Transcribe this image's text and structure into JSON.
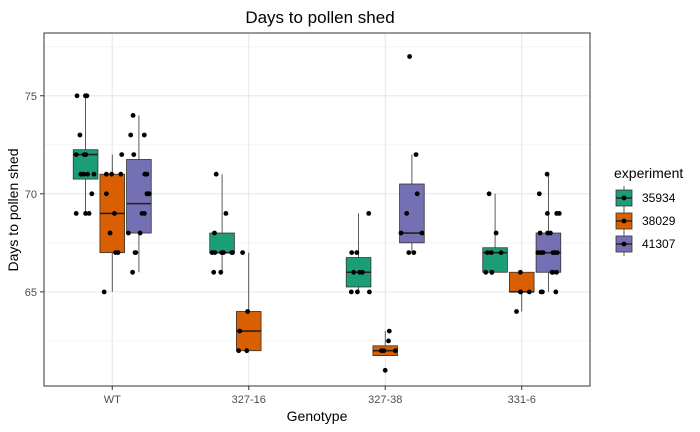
{
  "chart_data": {
    "type": "boxplot",
    "title": "Days to pollen shed",
    "xlabel": "Genotype",
    "ylabel": "Days to pollen shed",
    "categories": [
      "WT",
      "327-16",
      "327-38",
      "331-6"
    ],
    "ylim": [
      60.2,
      78.2
    ],
    "yticks": [
      65,
      70,
      75
    ],
    "grid": true,
    "legend": {
      "title": "experiment",
      "position": "right"
    },
    "series": [
      {
        "name": "35934",
        "color": "#1B9E77",
        "boxes": [
          {
            "category": "WT",
            "min": 69,
            "q1": 70.75,
            "median": 72,
            "q3": 72.25,
            "max": 75,
            "points": [
              75,
              75,
              75,
              73,
              72,
              72,
              72,
              71,
              71,
              71,
              71,
              70,
              69,
              69,
              69
            ]
          },
          {
            "category": "327-16",
            "min": 66,
            "q1": 67,
            "median": 67,
            "q3": 68,
            "max": 71,
            "points": [
              71,
              69,
              68,
              67,
              67,
              67,
              67,
              67,
              67,
              66,
              66
            ]
          },
          {
            "category": "327-38",
            "min": 65,
            "q1": 65.25,
            "median": 66,
            "q3": 66.75,
            "max": 69,
            "points": [
              69,
              67,
              67,
              66,
              66,
              66,
              65,
              65,
              65
            ]
          },
          {
            "category": "331-6",
            "min": 66,
            "q1": 66,
            "median": 67,
            "q3": 67.25,
            "max": 70,
            "points": [
              70,
              68,
              67,
              67,
              67,
              66,
              66,
              66
            ]
          }
        ]
      },
      {
        "name": "38029",
        "color": "#D95F02",
        "boxes": [
          {
            "category": "WT",
            "min": 65,
            "q1": 67,
            "median": 69,
            "q3": 71,
            "max": 72,
            "points": [
              72,
              71,
              71,
              71,
              70,
              69,
              68,
              67,
              67,
              65
            ]
          },
          {
            "category": "327-16",
            "min": 62,
            "q1": 62,
            "median": 63,
            "q3": 64,
            "max": 67,
            "points": [
              67,
              64,
              63,
              62,
              62
            ]
          },
          {
            "category": "327-38",
            "min": 61.75,
            "q1": 61.75,
            "median": 62,
            "q3": 62.25,
            "max": 63,
            "points": [
              63,
              62.5,
              62,
              62,
              62,
              61
            ]
          },
          {
            "category": "331-6",
            "min": 64,
            "q1": 65,
            "median": 65,
            "q3": 66,
            "max": 66,
            "points": [
              66,
              65,
              65,
              65,
              64
            ]
          }
        ]
      },
      {
        "name": "41307",
        "color": "#7570B3",
        "boxes": [
          {
            "category": "WT",
            "min": 66,
            "q1": 68,
            "median": 69.5,
            "q3": 71.75,
            "max": 74,
            "points": [
              74,
              73,
              73,
              72,
              71,
              71,
              70,
              70,
              70,
              69,
              69,
              68,
              68,
              67,
              67,
              66
            ]
          },
          {
            "category": "327-38",
            "min": 67,
            "q1": 67.5,
            "median": 68,
            "q3": 70.5,
            "max": 72,
            "points": [
              77,
              72,
              70,
              69,
              68,
              68,
              67,
              67
            ]
          },
          {
            "category": "331-6",
            "min": 65,
            "q1": 66,
            "median": 67,
            "q3": 68,
            "max": 71,
            "points": [
              71,
              70,
              69,
              69,
              69,
              68,
              68,
              68,
              67,
              67,
              67,
              67,
              67,
              67,
              66,
              66,
              66,
              65,
              65,
              65
            ]
          }
        ]
      }
    ]
  }
}
